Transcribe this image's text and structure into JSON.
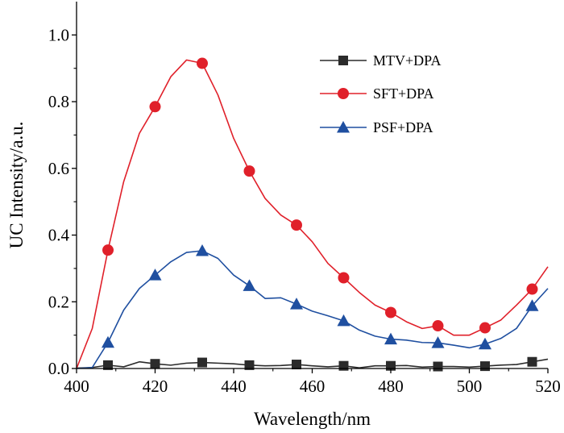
{
  "chart_data": {
    "type": "line",
    "xlabel": "Wavelength/nm",
    "ylabel": "UC Intensity/a.u.",
    "xlim": [
      400,
      520
    ],
    "ylim": [
      0,
      1.1
    ],
    "xticks": [
      400,
      420,
      440,
      460,
      480,
      500,
      520
    ],
    "xtick_labels": [
      "400",
      "420",
      "440",
      "460",
      "480",
      "500",
      "520"
    ],
    "yticks": [
      0,
      0.2,
      0.4,
      0.6,
      0.8,
      1.0
    ],
    "ytick_labels": [
      "0.0",
      "0.2",
      "0.4",
      "0.6",
      "0.8",
      "1.0"
    ],
    "grid": false,
    "legend_position": "top-right",
    "series": [
      {
        "name": "MTV+DPA",
        "color": "#2b2b2b",
        "marker": "square",
        "x": [
          400,
          404,
          408,
          412,
          416,
          420,
          424,
          428,
          432,
          436,
          440,
          444,
          448,
          452,
          456,
          460,
          464,
          468,
          472,
          476,
          480,
          484,
          488,
          492,
          496,
          500,
          504,
          508,
          512,
          516,
          520
        ],
        "y": [
          0.001,
          0.003,
          0.01,
          0.005,
          0.02,
          0.014,
          0.01,
          0.016,
          0.018,
          0.016,
          0.014,
          0.01,
          0.008,
          0.009,
          0.012,
          0.008,
          0.005,
          0.008,
          0.002,
          0.008,
          0.008,
          0.009,
          0.004,
          0.006,
          0.006,
          0.004,
          0.007,
          0.01,
          0.012,
          0.02,
          0.028
        ],
        "marker_x": [
          408,
          420,
          432,
          444,
          456,
          468,
          480,
          492,
          504,
          516
        ],
        "marker_y": [
          0.01,
          0.014,
          0.018,
          0.01,
          0.012,
          0.008,
          0.008,
          0.006,
          0.007,
          0.02
        ]
      },
      {
        "name": "SFT+DPA",
        "color": "#e0202a",
        "marker": "circle",
        "x": [
          400,
          404,
          408,
          412,
          416,
          420,
          424,
          428,
          432,
          436,
          440,
          444,
          448,
          452,
          456,
          460,
          464,
          468,
          472,
          476,
          480,
          484,
          488,
          492,
          496,
          500,
          504,
          508,
          512,
          516,
          520
        ],
        "y": [
          0.0,
          0.12,
          0.355,
          0.56,
          0.705,
          0.785,
          0.875,
          0.925,
          0.915,
          0.82,
          0.69,
          0.592,
          0.51,
          0.46,
          0.43,
          0.38,
          0.315,
          0.272,
          0.228,
          0.19,
          0.168,
          0.14,
          0.12,
          0.128,
          0.1,
          0.1,
          0.122,
          0.145,
          0.19,
          0.238,
          0.305
        ],
        "marker_x": [
          408,
          420,
          432,
          444,
          456,
          468,
          480,
          492,
          504,
          516
        ],
        "marker_y": [
          0.355,
          0.785,
          0.915,
          0.592,
          0.43,
          0.272,
          0.168,
          0.128,
          0.122,
          0.238
        ]
      },
      {
        "name": "PSF+DPA",
        "color": "#1f4fa0",
        "marker": "triangle",
        "x": [
          400,
          404,
          408,
          412,
          416,
          420,
          424,
          428,
          432,
          436,
          440,
          444,
          448,
          452,
          456,
          460,
          464,
          468,
          472,
          476,
          480,
          484,
          488,
          492,
          496,
          500,
          504,
          508,
          512,
          516,
          520
        ],
        "y": [
          0.0,
          0.003,
          0.078,
          0.175,
          0.24,
          0.28,
          0.32,
          0.348,
          0.353,
          0.33,
          0.28,
          0.248,
          0.21,
          0.212,
          0.193,
          0.172,
          0.158,
          0.143,
          0.115,
          0.097,
          0.088,
          0.085,
          0.078,
          0.077,
          0.07,
          0.062,
          0.073,
          0.09,
          0.12,
          0.188,
          0.24
        ],
        "marker_x": [
          408,
          420,
          432,
          444,
          456,
          468,
          480,
          492,
          504,
          516
        ],
        "marker_y": [
          0.078,
          0.28,
          0.353,
          0.248,
          0.193,
          0.143,
          0.088,
          0.077,
          0.073,
          0.188
        ]
      }
    ]
  }
}
